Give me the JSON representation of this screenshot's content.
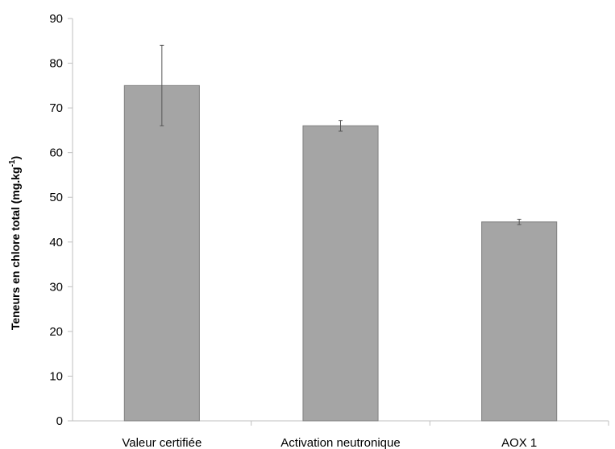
{
  "chart_data": {
    "type": "bar",
    "categories": [
      "Valeur certifiée",
      "Activation neutronique",
      "AOX 1"
    ],
    "values": [
      75,
      66,
      44.5
    ],
    "errors": [
      9,
      1.2,
      0.6
    ],
    "ylim": [
      0,
      90
    ],
    "yticks": [
      "0",
      "10",
      "20",
      "30",
      "40",
      "50",
      "60",
      "70",
      "80",
      "90"
    ],
    "ylabel_main": "Teneurs en chlore total (mg.kg",
    "ylabel_sup": "-1",
    "ylabel_end": ")",
    "bar_color": "#a5a5a5",
    "bar_stroke": "#7f7f7f",
    "axis_color": "#bfbfbf",
    "grid": false,
    "legend": "none"
  }
}
